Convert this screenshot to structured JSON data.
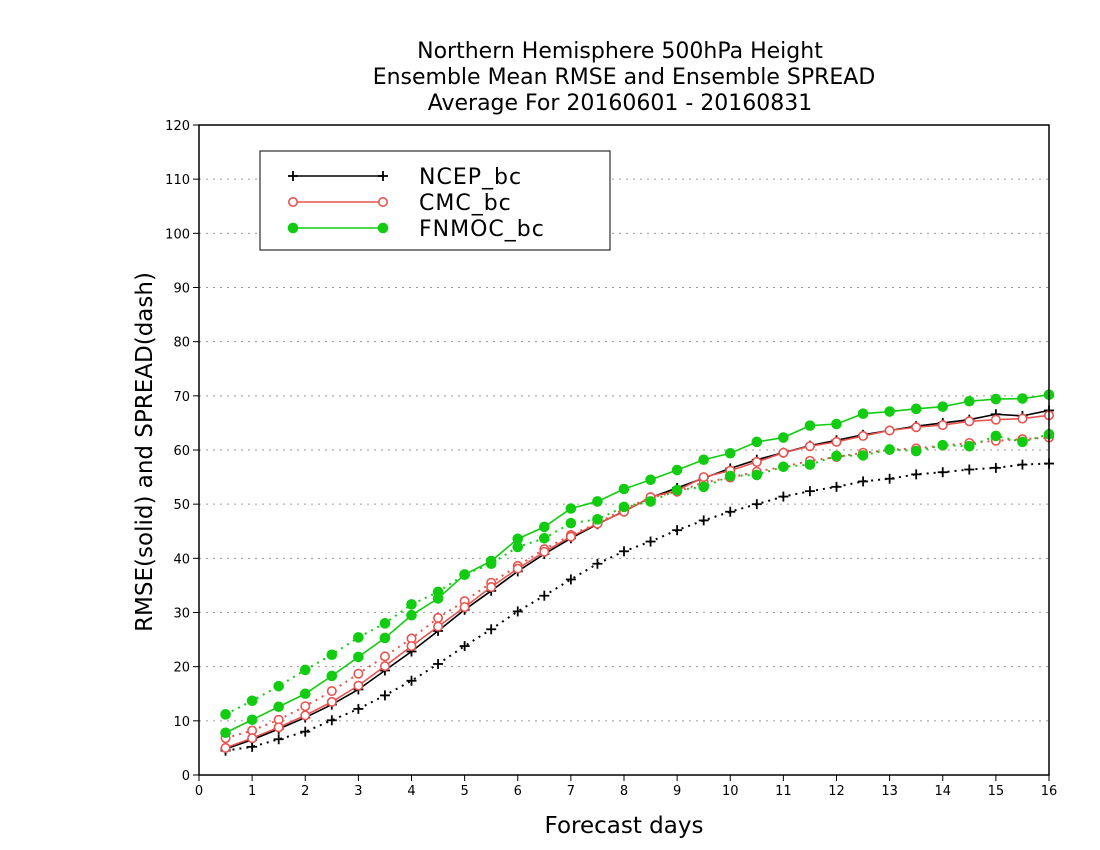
{
  "chart_data": {
    "type": "line",
    "title": [
      "Northern Hemisphere 500hPa Height",
      "Ensemble Mean RMSE and Ensemble SPREAD",
      "Average For 20160601 - 20160831"
    ],
    "xlabel": "Forecast days",
    "ylabel": "RMSE(solid) and SPREAD(dash)",
    "xlim": [
      0,
      16
    ],
    "ylim": [
      0,
      120
    ],
    "xticks": [
      "0",
      "1",
      "2",
      "3",
      "4",
      "5",
      "6",
      "7",
      "8",
      "9",
      "10",
      "11",
      "12",
      "13",
      "14",
      "15",
      "16"
    ],
    "yticks": [
      "0",
      "10",
      "20",
      "30",
      "40",
      "50",
      "60",
      "70",
      "80",
      "90",
      "100",
      "110",
      "120"
    ],
    "grid": "horizontal-dotted",
    "legend_position": "top-left",
    "x": [
      0.5,
      1,
      1.5,
      2,
      2.5,
      3,
      3.5,
      4,
      4.5,
      5,
      5.5,
      6,
      6.5,
      7,
      7.5,
      8,
      8.5,
      9,
      9.5,
      10,
      10.5,
      11,
      11.5,
      12,
      12.5,
      13,
      13.5,
      14,
      14.5,
      15,
      15.5,
      16
    ],
    "series": [
      {
        "name": "NCEP_bc",
        "color": "#000000",
        "marker": "plus",
        "rmse": [
          4.8,
          6.5,
          8.5,
          10.6,
          13.0,
          15.8,
          19.3,
          22.8,
          26.6,
          30.5,
          34.0,
          37.6,
          40.8,
          43.7,
          46.3,
          48.7,
          51.2,
          53.0,
          54.8,
          56.6,
          58.2,
          59.5,
          60.8,
          61.8,
          62.8,
          63.6,
          64.4,
          65.0,
          65.6,
          66.6,
          66.3,
          67.3
        ],
        "spread": [
          4.5,
          5.2,
          6.6,
          8.0,
          10.1,
          12.2,
          14.7,
          17.4,
          20.5,
          23.8,
          26.9,
          30.2,
          33.1,
          36.1,
          39.0,
          41.3,
          43.1,
          45.2,
          47.0,
          48.6,
          50.0,
          51.4,
          52.4,
          53.2,
          54.2,
          54.7,
          55.5,
          55.9,
          56.4,
          56.7,
          57.3,
          57.5
        ]
      },
      {
        "name": "CMC_bc",
        "color": "#e8534f",
        "marker": "circle",
        "rmse": [
          5.0,
          6.8,
          8.8,
          11.0,
          13.5,
          16.5,
          20.1,
          23.8,
          27.4,
          31.0,
          34.7,
          38.1,
          41.2,
          44.0,
          46.4,
          48.6,
          51.3,
          52.5,
          55.0,
          56.2,
          57.8,
          59.5,
          60.7,
          61.5,
          62.6,
          63.6,
          64.2,
          64.6,
          65.3,
          65.6,
          65.8,
          66.4
        ],
        "spread": [
          6.8,
          8.2,
          10.2,
          12.7,
          15.5,
          18.7,
          21.9,
          25.2,
          29.0,
          32.1,
          35.5,
          38.6,
          41.7,
          44.3,
          46.5,
          49.1,
          51.2,
          52.3,
          54.0,
          54.9,
          56.0,
          56.9,
          58.0,
          58.7,
          59.5,
          60.0,
          60.3,
          60.8,
          61.3,
          61.7,
          62.0,
          62.3
        ]
      },
      {
        "name": "FNMOC_bc",
        "color": "#11cc11",
        "marker": "filled-circle",
        "rmse": [
          7.8,
          10.2,
          12.6,
          15.0,
          18.3,
          21.8,
          25.3,
          29.5,
          32.6,
          37.0,
          39.5,
          43.6,
          45.8,
          49.2,
          50.5,
          52.8,
          54.5,
          56.3,
          58.2,
          59.4,
          61.5,
          62.3,
          64.5,
          64.8,
          66.7,
          67.1,
          67.6,
          68.0,
          69.0,
          69.4,
          69.5,
          70.2
        ],
        "spread": [
          11.2,
          13.7,
          16.4,
          19.4,
          22.2,
          25.4,
          28.0,
          31.5,
          33.8,
          37.0,
          39.0,
          42.1,
          43.7,
          46.5,
          47.2,
          49.5,
          50.5,
          52.6,
          53.2,
          55.2,
          55.4,
          56.9,
          57.3,
          58.9,
          59.0,
          60.1,
          59.8,
          60.9,
          60.7,
          62.6,
          61.5,
          62.9
        ]
      }
    ]
  }
}
